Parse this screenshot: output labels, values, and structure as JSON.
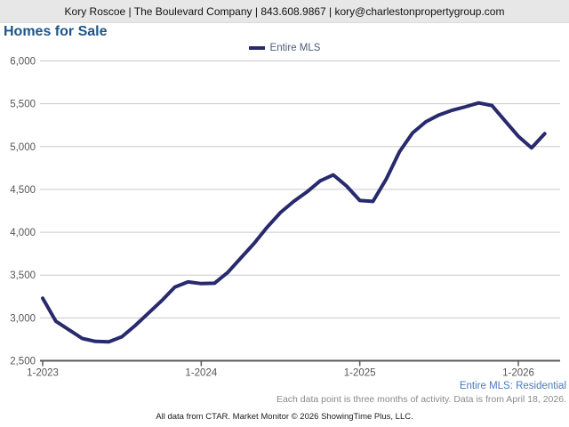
{
  "header": {
    "contact_line": "Kory Roscoe | The Boulevard Company | 843.608.9867 | kory@charlestonpropertygroup.com"
  },
  "title": "Homes for Sale",
  "legend": {
    "label": "Entire MLS",
    "color": "#282a6d"
  },
  "footnotes": {
    "series_note": "Entire MLS: Residential",
    "data_note": "Each data point is three months of activity. Data is from April 18, 2026.",
    "copyright": "All data from CTAR. Market Monitor © 2026 ShowingTime Plus, LLC."
  },
  "colors": {
    "line": "#282a6d",
    "grid": "#c9c9c9",
    "axis": "#5a5a5a",
    "tick_label": "#555555",
    "title": "#1e5586",
    "header_bg": "#e7e7e7",
    "footnote_blue": "#4a7ab5"
  },
  "chart_data": {
    "type": "line",
    "title": "Homes for Sale",
    "xlabel": "",
    "ylabel": "",
    "ylim": [
      2500,
      6000
    ],
    "y_ticks": [
      2500,
      3000,
      3500,
      4000,
      4500,
      5000,
      5500,
      6000
    ],
    "grid": "horizontal",
    "legend_position": "top-center",
    "x": [
      "1-2023",
      "2-2023",
      "3-2023",
      "4-2023",
      "5-2023",
      "6-2023",
      "7-2023",
      "8-2023",
      "9-2023",
      "10-2023",
      "11-2023",
      "12-2023",
      "1-2024",
      "2-2024",
      "3-2024",
      "4-2024",
      "5-2024",
      "6-2024",
      "7-2024",
      "8-2024",
      "9-2024",
      "10-2024",
      "11-2024",
      "12-2024",
      "1-2025",
      "2-2025",
      "3-2025",
      "4-2025",
      "5-2025",
      "6-2025",
      "7-2025",
      "8-2025",
      "9-2025",
      "10-2025",
      "11-2025",
      "12-2025",
      "1-2026",
      "2-2026",
      "3-2026"
    ],
    "x_tick_labels": [
      "1-2023",
      "1-2024",
      "1-2025",
      "1-2026"
    ],
    "series": [
      {
        "name": "Entire MLS",
        "values": [
          3230,
          2960,
          2860,
          2760,
          2725,
          2720,
          2780,
          2910,
          3055,
          3200,
          3360,
          3420,
          3400,
          3405,
          3530,
          3700,
          3870,
          4060,
          4230,
          4360,
          4470,
          4600,
          4670,
          4540,
          4370,
          4360,
          4620,
          4940,
          5160,
          5290,
          5370,
          5425,
          5465,
          5510,
          5480,
          5300,
          5120,
          4985,
          5150
        ]
      }
    ]
  }
}
